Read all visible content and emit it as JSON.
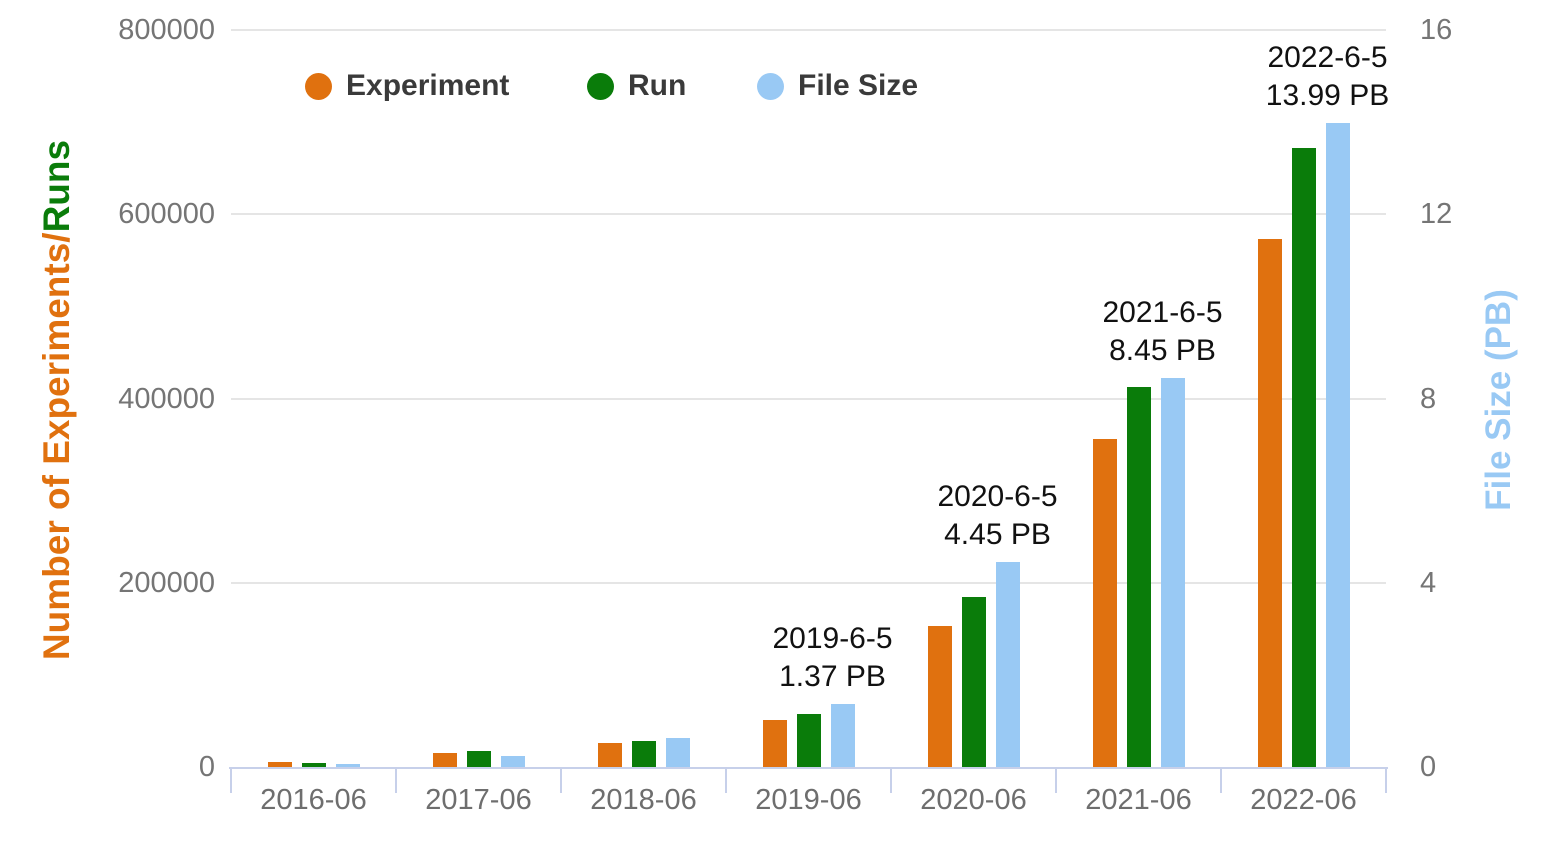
{
  "colors": {
    "experiment": "#e0710f",
    "run": "#0a7c0a",
    "file_size": "#99c9f4",
    "axis_line": "#c7d0ea",
    "gridline": "#e5e5e5",
    "tick_text": "#757575",
    "legend_text": "#3a3a3a",
    "annotation_text": "#111111"
  },
  "chart_data": {
    "type": "bar",
    "grid": true,
    "legend_position": "top",
    "categories": [
      "2016-06",
      "2017-06",
      "2018-06",
      "2019-06",
      "2020-06",
      "2021-06",
      "2022-06"
    ],
    "series": [
      {
        "name": "Experiment",
        "axis": "left",
        "color": "#e0710f",
        "values": [
          5000,
          15000,
          26000,
          51000,
          153000,
          356000,
          573000
        ]
      },
      {
        "name": "Run",
        "axis": "left",
        "color": "#0a7c0a",
        "values": [
          4500,
          17000,
          28500,
          57000,
          184000,
          412000,
          672000
        ]
      },
      {
        "name": "File Size",
        "axis": "right",
        "color": "#99c9f4",
        "values": [
          0.07,
          0.24,
          0.64,
          1.37,
          4.45,
          8.45,
          13.99
        ]
      }
    ],
    "left_axis": {
      "title_orange": "Number of Experiments/",
      "title_green": "Runs",
      "ticks": [
        800000,
        600000,
        400000,
        200000,
        0
      ],
      "max": 800000
    },
    "right_axis": {
      "title": "File Size (PB)",
      "ticks": [
        16,
        12,
        8,
        4,
        0
      ],
      "max": 16
    },
    "annotations": [
      {
        "category": "2019-06",
        "line1": "2019-6-5",
        "line2": "1.37 PB"
      },
      {
        "category": "2020-06",
        "line1": "2020-6-5",
        "line2": "4.45 PB"
      },
      {
        "category": "2021-06",
        "line1": "2021-6-5",
        "line2": "8.45 PB"
      },
      {
        "category": "2022-06",
        "line1": "2022-6-5",
        "line2": "13.99 PB"
      }
    ],
    "legend": [
      "Experiment",
      "Run",
      "File Size"
    ]
  }
}
